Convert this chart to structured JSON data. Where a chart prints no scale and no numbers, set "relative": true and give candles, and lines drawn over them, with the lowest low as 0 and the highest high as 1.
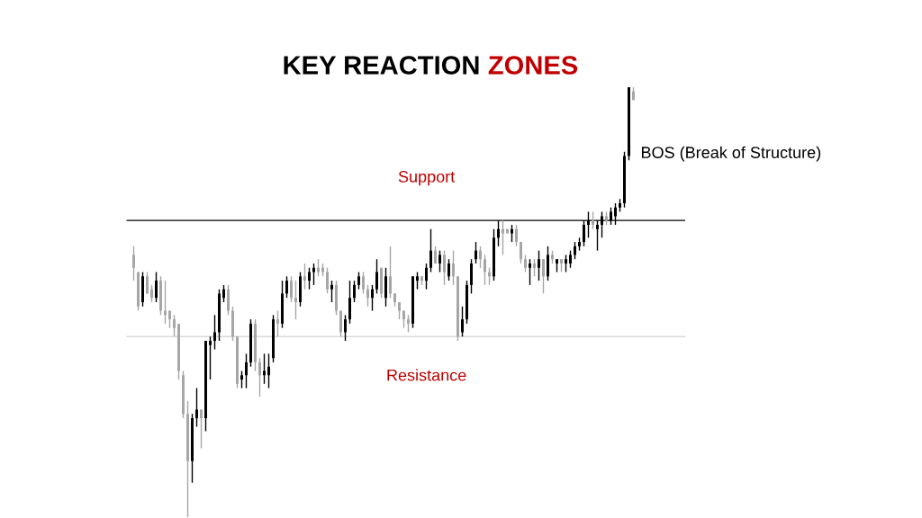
{
  "chart_data": {
    "type": "candlestick",
    "title": "KEY REACTION ZONES",
    "relative": true,
    "categories": [
      null,
      null,
      null,
      null,
      null,
      null,
      null,
      null,
      null,
      null,
      null,
      null,
      null,
      null,
      null,
      null,
      null,
      null,
      null,
      null,
      null,
      null,
      null,
      null,
      null,
      null,
      null,
      null,
      null,
      null,
      null,
      null,
      null,
      null,
      null,
      null,
      null,
      null,
      null,
      null,
      null,
      null,
      null,
      null,
      null,
      null,
      null,
      null,
      null,
      null,
      null,
      null,
      null,
      null,
      null,
      null,
      null,
      null,
      null,
      null,
      null,
      null,
      null,
      null,
      null,
      null,
      null,
      null,
      null,
      null,
      null,
      null,
      null,
      null,
      null,
      null,
      null,
      null,
      null,
      null,
      null,
      null,
      null,
      null,
      null,
      null,
      null,
      null,
      null,
      null,
      null,
      null,
      null,
      null,
      null,
      null,
      null,
      null,
      null,
      null,
      null,
      null,
      null,
      null,
      null,
      null,
      null,
      null,
      null,
      null,
      null,
      null
    ],
    "ohlc": [
      [
        0.61,
        0.63,
        0.55,
        0.58
      ],
      [
        0.57,
        0.57,
        0.48,
        0.49
      ],
      [
        0.5,
        0.57,
        0.49,
        0.56
      ],
      [
        0.56,
        0.57,
        0.52,
        0.52
      ],
      [
        0.53,
        0.54,
        0.5,
        0.51
      ],
      [
        0.51,
        0.57,
        0.5,
        0.55
      ],
      [
        0.55,
        0.56,
        0.47,
        0.48
      ],
      [
        0.48,
        0.55,
        0.45,
        0.47
      ],
      [
        0.48,
        0.48,
        0.44,
        0.46
      ],
      [
        0.46,
        0.47,
        0.42,
        0.44
      ],
      [
        0.45,
        0.45,
        0.32,
        0.34
      ],
      [
        0.33,
        0.34,
        0.23,
        0.24
      ],
      [
        0.24,
        0.27,
        0,
        0.13
      ],
      [
        0.13,
        0.24,
        0.08,
        0.23
      ],
      [
        0.23,
        0.3,
        0.21,
        0.25
      ],
      [
        0.25,
        0.25,
        0.16,
        0.23
      ],
      [
        0.23,
        0.41,
        0.2,
        0.41
      ],
      [
        0.4,
        0.42,
        0.32,
        0.41
      ],
      [
        0.41,
        0.47,
        0.39,
        0.43
      ],
      [
        0.43,
        0.53,
        0.41,
        0.52
      ],
      [
        0.51,
        0.54,
        0.5,
        0.53
      ],
      [
        0.53,
        0.54,
        0.47,
        0.48
      ],
      [
        0.48,
        0.49,
        0.41,
        0.42
      ],
      [
        0.42,
        0.42,
        0.3,
        0.31
      ],
      [
        0.32,
        0.34,
        0.3,
        0.33
      ],
      [
        0.33,
        0.38,
        0.3,
        0.36
      ],
      [
        0.36,
        0.46,
        0.35,
        0.45
      ],
      [
        0.45,
        0.46,
        0.34,
        0.36
      ],
      [
        0.36,
        0.37,
        0.28,
        0.33
      ],
      [
        0.33,
        0.38,
        0.31,
        0.34
      ],
      [
        0.33,
        0.38,
        0.3,
        0.35
      ],
      [
        0.37,
        0.47,
        0.36,
        0.46
      ],
      [
        0.46,
        0.48,
        0.42,
        0.45
      ],
      [
        0.45,
        0.55,
        0.44,
        0.52
      ],
      [
        0.52,
        0.56,
        0.51,
        0.55
      ],
      [
        0.55,
        0.56,
        0.5,
        0.51
      ],
      [
        0.51,
        0.55,
        0.46,
        0.5
      ],
      [
        0.5,
        0.57,
        0.49,
        0.56
      ],
      [
        0.56,
        0.59,
        0.53,
        0.55
      ],
      [
        0.55,
        0.58,
        0.53,
        0.57
      ],
      [
        0.57,
        0.59,
        0.54,
        0.58
      ],
      [
        0.58,
        0.6,
        0.56,
        0.57
      ],
      [
        0.58,
        0.59,
        0.56,
        0.57
      ],
      [
        0.57,
        0.58,
        0.52,
        0.53
      ],
      [
        0.53,
        0.55,
        0.5,
        0.54
      ],
      [
        0.54,
        0.55,
        0.47,
        0.48
      ],
      [
        0.48,
        0.48,
        0.42,
        0.43
      ],
      [
        0.43,
        0.47,
        0.41,
        0.46
      ],
      [
        0.46,
        0.55,
        0.45,
        0.51
      ],
      [
        0.51,
        0.55,
        0.5,
        0.54
      ],
      [
        0.54,
        0.57,
        0.53,
        0.56
      ],
      [
        0.56,
        0.57,
        0.52,
        0.53
      ],
      [
        0.53,
        0.54,
        0.49,
        0.51
      ],
      [
        0.51,
        0.54,
        0.48,
        0.53
      ],
      [
        0.53,
        0.6,
        0.52,
        0.57
      ],
      [
        0.58,
        0.58,
        0.51,
        0.52
      ],
      [
        0.51,
        0.58,
        0.49,
        0.56
      ],
      [
        0.56,
        0.63,
        0.51,
        0.52
      ],
      [
        0.52,
        0.52,
        0.49,
        0.5
      ],
      [
        0.5,
        0.5,
        0.46,
        0.48
      ],
      [
        0.48,
        0.48,
        0.44,
        0.46
      ],
      [
        0.46,
        0.47,
        0.43,
        0.45
      ],
      [
        0.45,
        0.56,
        0.44,
        0.56
      ],
      [
        0.55,
        0.57,
        0.53,
        0.56
      ],
      [
        0.56,
        0.56,
        0.54,
        0.55
      ],
      [
        0.55,
        0.59,
        0.53,
        0.58
      ],
      [
        0.58,
        0.67,
        0.57,
        0.62
      ],
      [
        0.62,
        0.63,
        0.59,
        0.59
      ],
      [
        0.59,
        0.62,
        0.57,
        0.61
      ],
      [
        0.61,
        0.62,
        0.54,
        0.57
      ],
      [
        0.56,
        0.6,
        0.55,
        0.59
      ],
      [
        0.59,
        0.62,
        0.54,
        0.56
      ],
      [
        0.56,
        0.56,
        0.41,
        0.42
      ],
      [
        0.43,
        0.49,
        0.42,
        0.46
      ],
      [
        0.46,
        0.55,
        0.45,
        0.54
      ],
      [
        0.54,
        0.6,
        0.52,
        0.59
      ],
      [
        0.6,
        0.64,
        0.59,
        0.62
      ],
      [
        0.62,
        0.63,
        0.58,
        0.6
      ],
      [
        0.6,
        0.61,
        0.54,
        0.57
      ],
      [
        0.57,
        0.58,
        0.54,
        0.56
      ],
      [
        0.56,
        0.67,
        0.55,
        0.65
      ],
      [
        0.65,
        0.69,
        0.63,
        0.67
      ],
      [
        0.67,
        0.69,
        0.61,
        0.66
      ],
      [
        0.67,
        0.67,
        0.66,
        0.66
      ],
      [
        0.66,
        0.68,
        0.64,
        0.67
      ],
      [
        0.67,
        0.68,
        0.63,
        0.64
      ],
      [
        0.64,
        0.64,
        0.59,
        0.6
      ],
      [
        0.6,
        0.61,
        0.57,
        0.58
      ],
      [
        0.58,
        0.6,
        0.54,
        0.59
      ],
      [
        0.59,
        0.6,
        0.56,
        0.58
      ],
      [
        0.58,
        0.62,
        0.55,
        0.6
      ],
      [
        0.6,
        0.6,
        0.52,
        0.56
      ],
      [
        0.56,
        0.63,
        0.55,
        0.61
      ],
      [
        0.61,
        0.62,
        0.59,
        0.6
      ],
      [
        0.59,
        0.6,
        0.57,
        0.6
      ],
      [
        0.6,
        0.6,
        0.57,
        0.59
      ],
      [
        0.59,
        0.61,
        0.57,
        0.6
      ],
      [
        0.59,
        0.62,
        0.58,
        0.61
      ],
      [
        0.61,
        0.64,
        0.6,
        0.63
      ],
      [
        0.63,
        0.65,
        0.62,
        0.64
      ],
      [
        0.64,
        0.69,
        0.63,
        0.68
      ],
      [
        0.68,
        0.71,
        0.65,
        0.69
      ],
      [
        0.69,
        0.71,
        0.67,
        0.68
      ],
      [
        0.67,
        0.69,
        0.62,
        0.68
      ],
      [
        0.68,
        0.71,
        0.65,
        0.7
      ],
      [
        0.7,
        0.71,
        0.68,
        0.69
      ],
      [
        0.69,
        0.72,
        0.68,
        0.71
      ],
      [
        0.7,
        0.73,
        0.68,
        0.72
      ],
      [
        0.72,
        0.74,
        0.71,
        0.73
      ],
      [
        0.73,
        0.85,
        0.72,
        0.84
      ],
      [
        0.84,
        1,
        0.83,
        1
      ],
      [
        0.99,
        1,
        0.97,
        0.97
      ]
    ],
    "colors": [
      "#a6a6a6",
      "#a6a6a6",
      "#000000",
      "#a6a6a6",
      "#a6a6a6",
      "#000000",
      "#a6a6a6",
      "#a6a6a6",
      "#a6a6a6",
      "#a6a6a6",
      "#a6a6a6",
      "#a6a6a6",
      "#a6a6a6",
      "#000000",
      "#000000",
      "#a6a6a6",
      "#000000",
      "#000000",
      "#000000",
      "#000000",
      "#000000",
      "#a6a6a6",
      "#a6a6a6",
      "#a6a6a6",
      "#000000",
      "#000000",
      "#000000",
      "#a6a6a6",
      "#a6a6a6",
      "#000000",
      "#000000",
      "#000000",
      "#a6a6a6",
      "#000000",
      "#000000",
      "#a6a6a6",
      "#a6a6a6",
      "#000000",
      "#a6a6a6",
      "#000000",
      "#000000",
      "#a6a6a6",
      "#a6a6a6",
      "#a6a6a6",
      "#000000",
      "#a6a6a6",
      "#a6a6a6",
      "#000000",
      "#000000",
      "#000000",
      "#000000",
      "#a6a6a6",
      "#a6a6a6",
      "#000000",
      "#000000",
      "#a6a6a6",
      "#000000",
      "#a6a6a6",
      "#a6a6a6",
      "#a6a6a6",
      "#a6a6a6",
      "#a6a6a6",
      "#000000",
      "#000000",
      "#a6a6a6",
      "#000000",
      "#000000",
      "#a6a6a6",
      "#000000",
      "#a6a6a6",
      "#000000",
      "#a6a6a6",
      "#a6a6a6",
      "#000000",
      "#000000",
      "#000000",
      "#000000",
      "#a6a6a6",
      "#a6a6a6",
      "#a6a6a6",
      "#000000",
      "#000000",
      "#a6a6a6",
      "#a6a6a6",
      "#000000",
      "#a6a6a6",
      "#a6a6a6",
      "#a6a6a6",
      "#000000",
      "#a6a6a6",
      "#000000",
      "#a6a6a6",
      "#000000",
      "#a6a6a6",
      "#000000",
      "#a6a6a6",
      "#000000",
      "#000000",
      "#000000",
      "#000000",
      "#000000",
      "#000000",
      "#a6a6a6",
      "#000000",
      "#000000",
      "#a6a6a6",
      "#000000",
      "#000000",
      "#000000",
      "#000000",
      "#000000",
      "#a6a6a6"
    ],
    "ref_lines": [
      {
        "axis": "y",
        "value": 0.69,
        "label": "Support",
        "color": "#000000"
      },
      {
        "axis": "y",
        "value": 0.42,
        "label": "Resistance",
        "color": "#d9d9d9"
      }
    ],
    "annotations": [
      "BOS (Break of Structure)"
    ]
  }
}
